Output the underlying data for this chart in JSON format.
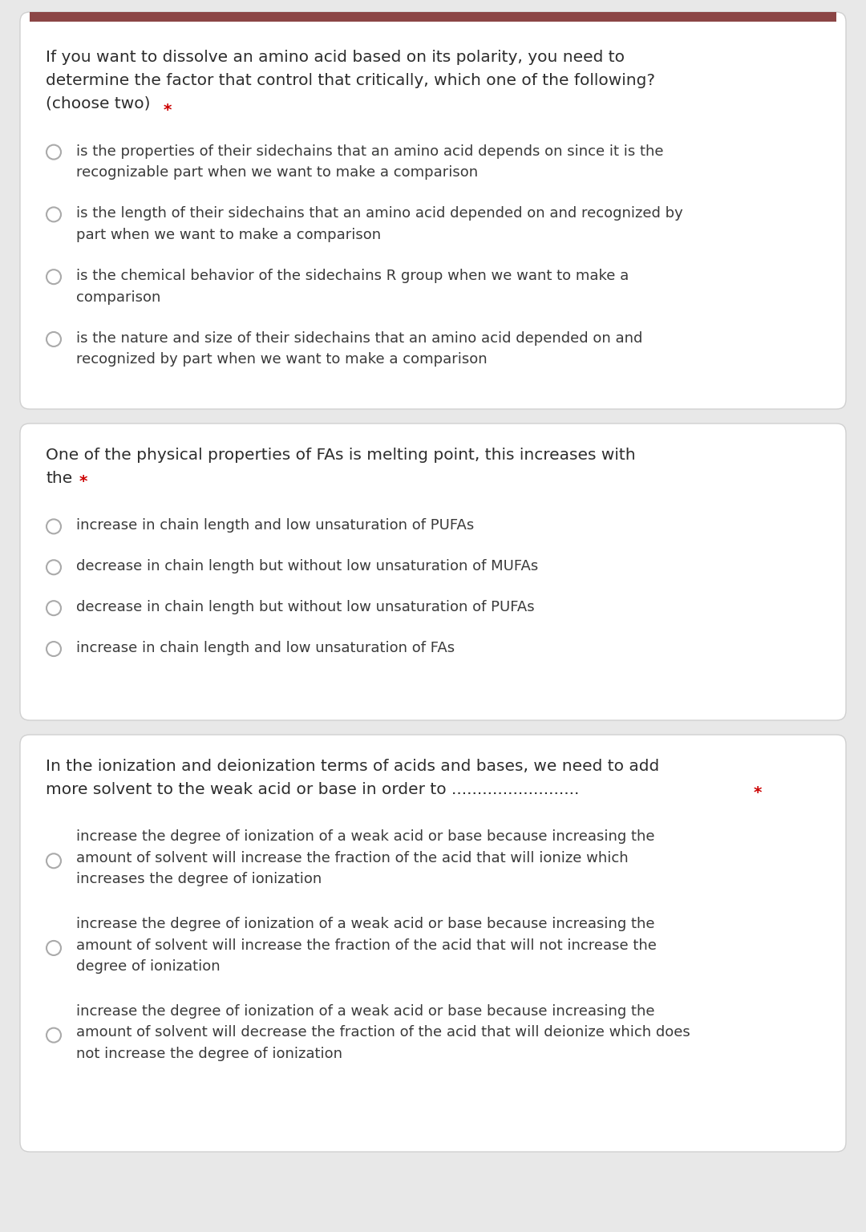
{
  "background_color": "#e8e8e8",
  "card_color": "#ffffff",
  "card_border_color": "#d0d0d0",
  "top_bar_color": "#8B4545",
  "question_text_color": "#2d2d2d",
  "option_text_color": "#3a3a3a",
  "asterisk_color": "#cc0000",
  "circle_edge_color": "#aaaaaa",
  "circle_fill": "#ffffff",
  "font_size_question": 14.5,
  "font_size_option": 13.0,
  "q1_question": "If you want to dissolve an amino acid based on its polarity, you need to\ndetermine the factor that control that critically, which one of the following?\n(choose two) *",
  "q1_question_asterisk_line": 2,
  "q1_options": [
    "is the properties of their sidechains that an amino acid depends on since it is the\nrecognizable part when we want to make a comparison",
    "is the length of their sidechains that an amino acid depended on and recognized by\npart when we want to make a comparison",
    "is the chemical behavior of the sidechains R group when we want to make a\ncomparison",
    "is the nature and size of their sidechains that an amino acid depended on and\nrecognized by part when we want to make a comparison"
  ],
  "q2_question": "One of the physical properties of FAs is melting point, this increases with\nthe *",
  "q2_options": [
    "increase in chain length and low unsaturation of PUFAs",
    "decrease in chain length but without low unsaturation of MUFAs",
    "decrease in chain length but without low unsaturation of PUFAs",
    "increase in chain length and low unsaturation of FAs"
  ],
  "q3_question": "In the ionization and deionization terms of acids and bases, we need to add\nmore solvent to the weak acid or base in order to ......................... *",
  "q3_options": [
    "increase the degree of ionization of a weak acid or base because increasing the\namount of solvent will increase the fraction of the acid that will ionize which\nincreases the degree of ionization",
    "increase the degree of ionization of a weak acid or base because increasing the\namount of solvent will increase the fraction of the acid that will not increase the\ndegree of ionization",
    "increase the degree of ionization of a weak acid or base because increasing the\namount of solvent will decrease the fraction of the acid that will deionize which does\nnot increase the degree of ionization"
  ]
}
